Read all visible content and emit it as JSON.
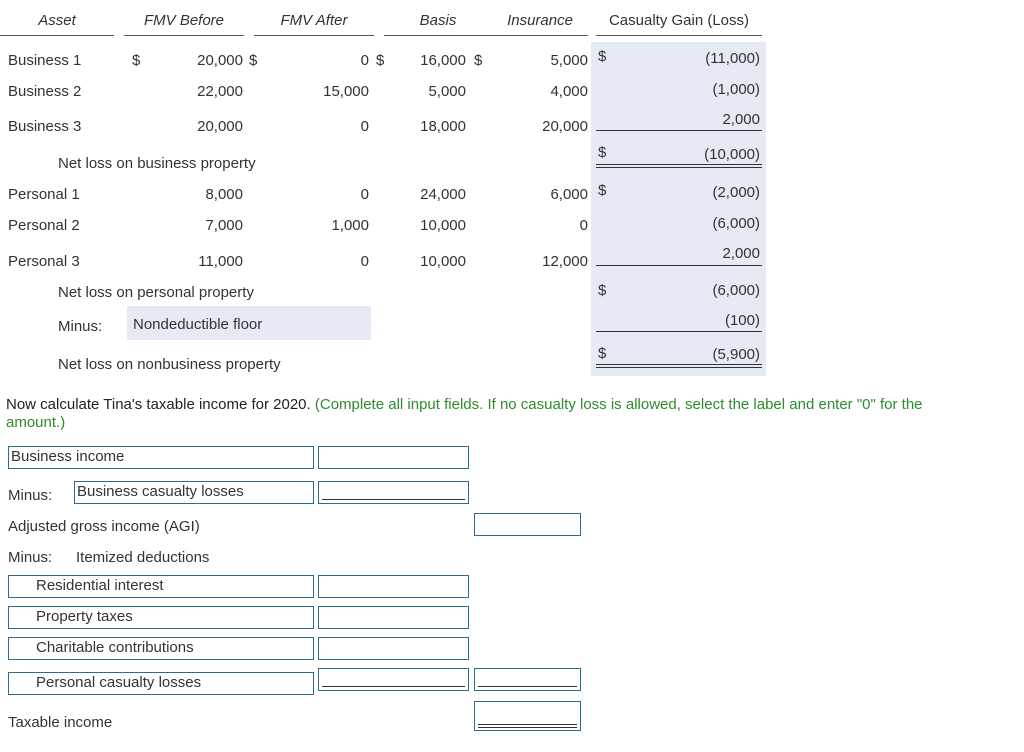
{
  "table": {
    "headers": {
      "asset": "Asset",
      "fmv_before": "FMV Before",
      "fmv_after": "FMV After",
      "basis": "Basis",
      "insurance": "Insurance",
      "gain_loss": "Casualty Gain (Loss)"
    },
    "currency": "$",
    "business_rows": [
      {
        "asset": "Business 1",
        "fmv_before": "20,000",
        "fmv_after": "0",
        "basis": "16,000",
        "insurance": "5,000",
        "gain_loss": "(11,000)"
      },
      {
        "asset": "Business 2",
        "fmv_before": "22,000",
        "fmv_after": "15,000",
        "basis": "5,000",
        "insurance": "4,000",
        "gain_loss": "(1,000)"
      },
      {
        "asset": "Business 3",
        "fmv_before": "20,000",
        "fmv_after": "0",
        "basis": "18,000",
        "insurance": "20,000",
        "gain_loss": "2,000"
      }
    ],
    "net_business_label": "Net loss on business property",
    "net_business_value": "(10,000)",
    "personal_rows": [
      {
        "asset": "Personal 1",
        "fmv_before": "8,000",
        "fmv_after": "0",
        "basis": "24,000",
        "insurance": "6,000",
        "gain_loss": "(2,000)"
      },
      {
        "asset": "Personal 2",
        "fmv_before": "7,000",
        "fmv_after": "1,000",
        "basis": "10,000",
        "insurance": "0",
        "gain_loss": "(6,000)"
      },
      {
        "asset": "Personal 3",
        "fmv_before": "11,000",
        "fmv_after": "0",
        "basis": "10,000",
        "insurance": "12,000",
        "gain_loss": "2,000"
      }
    ],
    "net_personal_label": "Net loss on personal property",
    "net_personal_value": "(6,000)",
    "minus_label": "Minus:",
    "floor_label": "Nondeductible floor",
    "floor_value": "(100)",
    "net_nonbusiness_label": "Net loss on nonbusiness property",
    "net_nonbusiness_value": "(5,900)"
  },
  "instructions": {
    "main": "Now calculate Tina's taxable income for 2020.",
    "note_line1": "(Complete all input fields. If no casualty loss is allowed, select the label and enter \"0\" for the",
    "note_line2": "amount.)"
  },
  "form": {
    "business_income": {
      "label": "Business income",
      "value": ""
    },
    "minus_label": "Minus:",
    "business_casualty": {
      "label": "Business casualty losses",
      "value": ""
    },
    "agi": {
      "label": "Adjusted gross income (AGI)",
      "value": ""
    },
    "itemized_minus": "Minus:",
    "itemized_label": "Itemized deductions",
    "residential_interest": {
      "label": "Residential interest",
      "value": ""
    },
    "property_taxes": {
      "label": "Property taxes",
      "value": ""
    },
    "charitable": {
      "label": "Charitable contributions",
      "value": ""
    },
    "personal_casualty": {
      "label": "Personal casualty losses",
      "value": "",
      "total": ""
    },
    "taxable_income": {
      "label": "Taxable income",
      "value": ""
    }
  },
  "colors": {
    "shade": "#e6eaf5",
    "border": "#2c6e8a",
    "note": "#2e8b2e"
  }
}
